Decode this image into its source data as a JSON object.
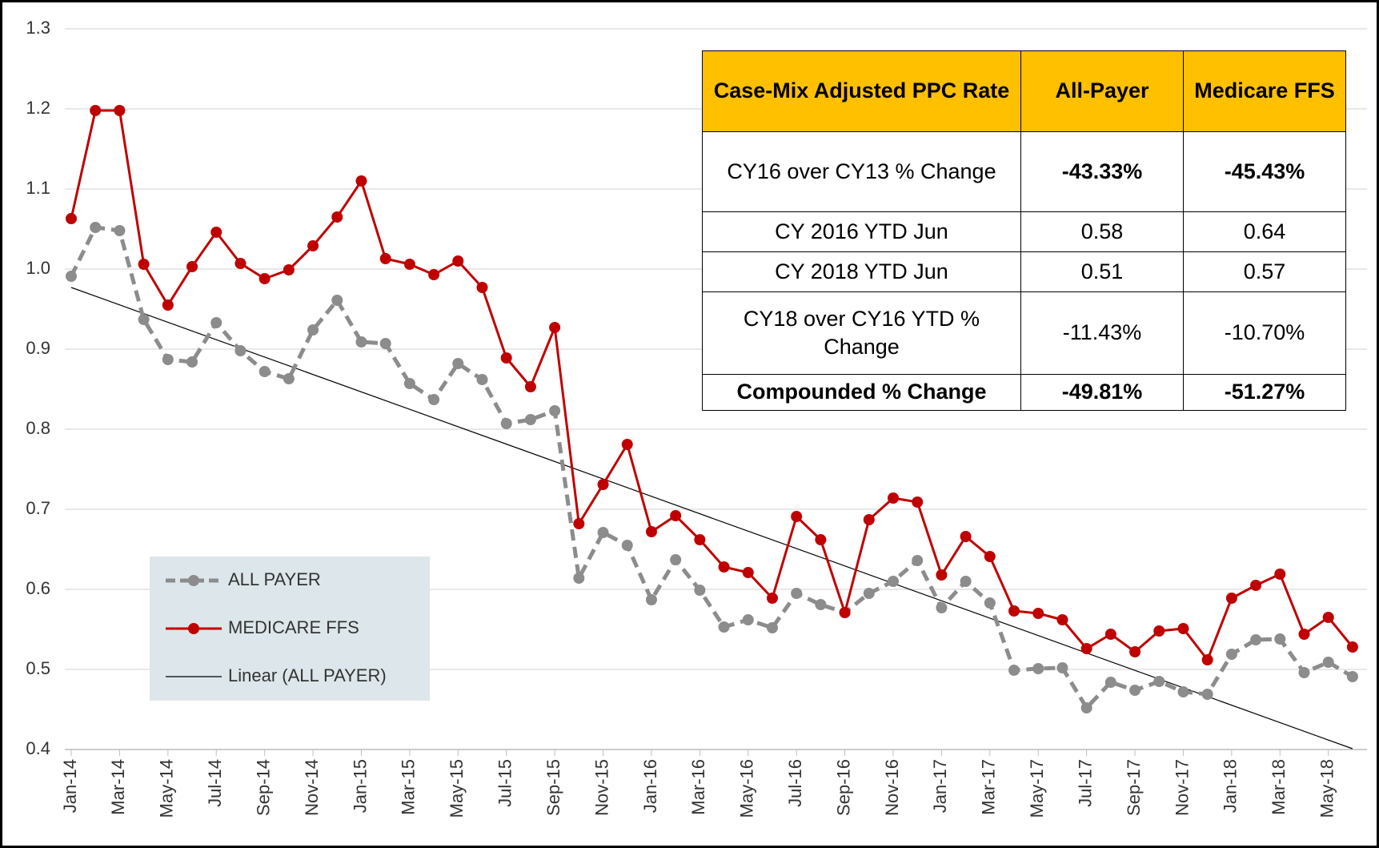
{
  "chart_data": {
    "type": "line",
    "categories": [
      "Jan-14",
      null,
      "Mar-14",
      null,
      "May-14",
      null,
      "Jul-14",
      null,
      "Sep-14",
      null,
      "Nov-14",
      null,
      "Jan-15",
      null,
      "Mar-15",
      null,
      "May-15",
      null,
      "Jul-15",
      null,
      "Sep-15",
      null,
      "Nov-15",
      null,
      "Jan-16",
      null,
      "Mar-16",
      null,
      "May-16",
      null,
      "Jul-16",
      null,
      "Sep-16",
      null,
      "Nov-16",
      null,
      "Jan-17",
      null,
      "Mar-17",
      null,
      "May-17",
      null,
      "Jul-17",
      null,
      "Sep-17",
      null,
      "Nov-17",
      null,
      "Jan-18",
      null,
      "Mar-18",
      null,
      "May-18",
      null
    ],
    "series": [
      {
        "name": "ALL PAYER",
        "color": "#8c8c8c",
        "dashed": true,
        "values": [
          0.991,
          1.052,
          1.048,
          0.937,
          0.887,
          0.884,
          0.933,
          0.898,
          0.872,
          0.863,
          0.924,
          0.961,
          0.909,
          0.907,
          0.857,
          0.837,
          0.882,
          0.862,
          0.807,
          0.812,
          0.823,
          0.614,
          0.671,
          0.655,
          0.587,
          0.637,
          0.599,
          0.553,
          0.562,
          0.552,
          0.595,
          0.581,
          0.571,
          0.595,
          0.61,
          0.636,
          0.577,
          0.61,
          0.583,
          0.499,
          0.501,
          0.502,
          0.452,
          0.484,
          0.474,
          0.485,
          0.472,
          0.469,
          0.519,
          0.537,
          0.538,
          0.496,
          0.509,
          0.491
        ]
      },
      {
        "name": "MEDICARE FFS",
        "color": "#c00000",
        "dashed": false,
        "values": [
          1.063,
          1.198,
          1.198,
          1.006,
          0.955,
          1.003,
          1.046,
          1.007,
          0.988,
          0.999,
          1.029,
          1.065,
          1.11,
          1.013,
          1.006,
          0.993,
          1.01,
          0.977,
          0.889,
          0.853,
          0.927,
          0.682,
          0.731,
          0.781,
          0.672,
          0.692,
          0.662,
          0.628,
          0.621,
          0.589,
          0.691,
          0.662,
          0.571,
          0.687,
          0.714,
          0.709,
          0.618,
          0.666,
          0.641,
          0.573,
          0.57,
          0.562,
          0.526,
          0.544,
          0.522,
          0.548,
          0.551,
          0.512,
          0.589,
          0.605,
          0.619,
          0.544,
          0.565,
          0.528
        ]
      }
    ],
    "trendline": {
      "name": "Linear (ALL PAYER)",
      "color": "#000000",
      "values": [
        0.977,
        0.401
      ]
    },
    "ylim": [
      0.4,
      1.3
    ],
    "yticks": [
      0.4,
      0.5,
      0.6,
      0.7,
      0.8,
      0.9,
      {
        "value": 1,
        "label": "1.0"
      },
      1.1,
      1.2,
      1.3
    ],
    "grid": true,
    "legend": "lower-left",
    "table": {
      "header": [
        "Case-Mix Adjusted PPC Rate",
        "All-Payer",
        "Medicare FFS"
      ],
      "rows": [
        [
          "CY16 over CY13 % Change",
          "-43.33%",
          "-45.43%"
        ],
        [
          "CY 2016 YTD Jun",
          "0.58",
          "0.64"
        ],
        [
          "CY 2018 YTD Jun",
          "0.51",
          "0.57"
        ],
        [
          "CY18 over CY16 YTD % Change",
          "-11.43%",
          "-10.70%"
        ],
        [
          "Compounded % Change",
          "-49.81%",
          "-51.27%"
        ]
      ]
    }
  }
}
